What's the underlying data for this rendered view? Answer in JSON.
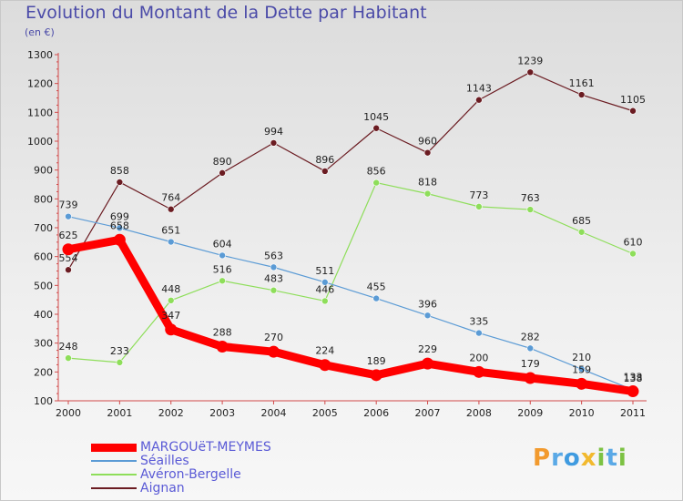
{
  "title": "Evolution du Montant de la Dette par Habitant",
  "subtitle": "(en €)",
  "logo": {
    "text": "Proxiti",
    "letters": [
      {
        "ch": "P",
        "color": "#f29a2e"
      },
      {
        "ch": "r",
        "color": "#5aa9e6"
      },
      {
        "ch": "o",
        "color": "#3f9be0"
      },
      {
        "ch": "x",
        "color": "#f2b92e"
      },
      {
        "ch": "i",
        "color": "#7cc243"
      },
      {
        "ch": "t",
        "color": "#5aa9e6"
      },
      {
        "ch": "i",
        "color": "#7cc243"
      }
    ]
  },
  "chart_data": {
    "type": "line",
    "title": "Evolution du Montant de la Dette par Habitant",
    "subtitle": "(en €)",
    "x": [
      "2000",
      "2001",
      "2002",
      "2003",
      "2004",
      "2005",
      "2006",
      "2007",
      "2008",
      "2009",
      "2010",
      "2011"
    ],
    "ylim": [
      100,
      1300
    ],
    "yticks": [
      "100",
      "200",
      "300",
      "400",
      "500",
      "600",
      "700",
      "800",
      "900",
      "1000",
      "1100",
      "1200",
      "1300"
    ],
    "grid": false,
    "legend": "bottom-left",
    "series": [
      {
        "name": "Aignan",
        "color": "#6b1c22",
        "values": [
          554,
          858,
          764,
          890,
          994,
          896,
          1045,
          960,
          1143,
          1239,
          1161,
          1105
        ],
        "labels": [
          "554",
          "858",
          "764",
          "890",
          "994",
          "896",
          "1045",
          "960",
          "1143",
          "1239",
          "1161",
          "1105"
        ]
      },
      {
        "name": "Avéron-Bergelle",
        "color": "#8ede5a",
        "values": [
          248,
          233,
          448,
          516,
          483,
          446,
          856,
          818,
          773,
          763,
          685,
          610
        ],
        "labels": [
          "248",
          "233",
          "448",
          "516",
          "483",
          "446",
          "856",
          "818",
          "773",
          "763",
          "685",
          "610"
        ]
      },
      {
        "name": "Séailles",
        "color": "#5b9bd5",
        "values": [
          739,
          699,
          651,
          604,
          563,
          511,
          455,
          396,
          335,
          282,
          210,
          138
        ],
        "labels": [
          "739",
          "699",
          "651",
          "604",
          "563",
          "511",
          "455",
          "396",
          "335",
          "282",
          "210",
          "138"
        ]
      },
      {
        "name": "MARGOUëT-MEYMES",
        "color": "#ff0000",
        "values": [
          625,
          658,
          347,
          288,
          270,
          224,
          189,
          229,
          200,
          179,
          159,
          133
        ],
        "labels": [
          "625",
          "658",
          "347",
          "288",
          "270",
          "224",
          "189",
          "229",
          "200",
          "179",
          "159",
          "133"
        ]
      }
    ],
    "legend_order": [
      "MARGOUëT-MEYMES",
      "Séailles",
      "Avéron-Bergelle",
      "Aignan"
    ]
  }
}
